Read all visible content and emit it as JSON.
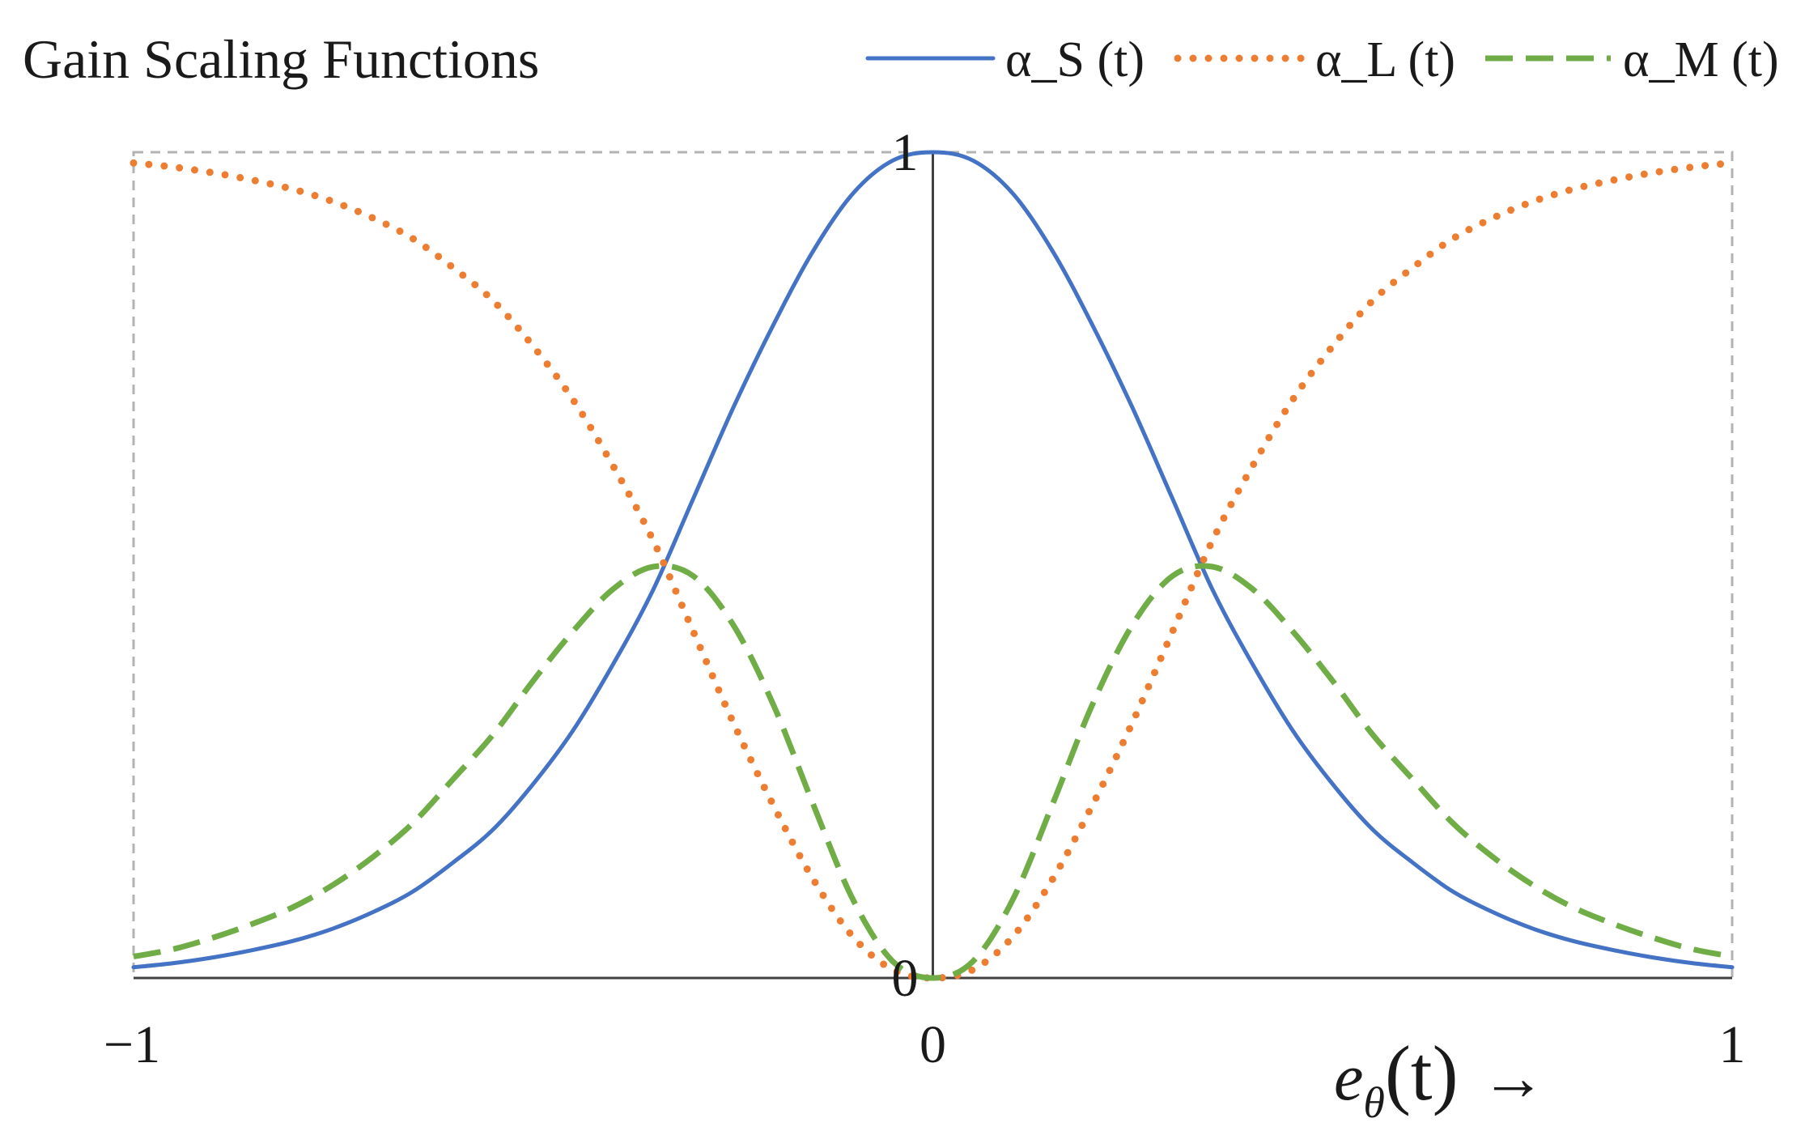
{
  "chart_data": {
    "type": "line",
    "title": "Gain Scaling Functions",
    "xlabel": {
      "symbol": "e",
      "subscript": "θ",
      "argument": "(t)",
      "arrow": "→"
    },
    "ylabel": "",
    "xlim": [
      -1,
      1
    ],
    "ylim": [
      0,
      1
    ],
    "x_tick_labels": [
      "−1",
      "0",
      "1"
    ],
    "y_tick_labels": [
      "0",
      "1"
    ],
    "grid": false,
    "frame": "dashed",
    "legend_position": "top-right",
    "x": [
      -1.0,
      -0.95,
      -0.9,
      -0.85,
      -0.8,
      -0.75,
      -0.7,
      -0.65,
      -0.6,
      -0.55,
      -0.5,
      -0.45,
      -0.4,
      -0.35,
      -0.3,
      -0.25,
      -0.2,
      -0.15,
      -0.1,
      -0.05,
      0.0,
      0.05,
      0.1,
      0.15,
      0.2,
      0.25,
      0.3,
      0.35,
      0.4,
      0.45,
      0.5,
      0.55,
      0.6,
      0.65,
      0.7,
      0.75,
      0.8,
      0.85,
      0.9,
      0.95,
      1.0
    ],
    "series": [
      {
        "name": "α_S (t)",
        "color": "#4472C4",
        "style": "solid",
        "values": [
          0.013,
          0.018,
          0.025,
          0.034,
          0.045,
          0.06,
          0.08,
          0.105,
          0.14,
          0.18,
          0.235,
          0.3,
          0.38,
          0.47,
          0.58,
          0.69,
          0.79,
          0.88,
          0.95,
          0.99,
          1.0,
          0.99,
          0.95,
          0.88,
          0.79,
          0.69,
          0.58,
          0.47,
          0.38,
          0.3,
          0.235,
          0.18,
          0.14,
          0.105,
          0.08,
          0.06,
          0.045,
          0.034,
          0.025,
          0.018,
          0.013
        ]
      },
      {
        "name": "α_L (t)",
        "color": "#ED7D31",
        "style": "dotted",
        "values": [
          0.987,
          0.982,
          0.975,
          0.966,
          0.955,
          0.94,
          0.92,
          0.895,
          0.86,
          0.82,
          0.765,
          0.7,
          0.62,
          0.53,
          0.42,
          0.31,
          0.21,
          0.12,
          0.05,
          0.01,
          0.0,
          0.01,
          0.05,
          0.12,
          0.21,
          0.31,
          0.42,
          0.53,
          0.62,
          0.7,
          0.765,
          0.82,
          0.86,
          0.895,
          0.92,
          0.94,
          0.955,
          0.966,
          0.975,
          0.982,
          0.987
        ]
      },
      {
        "name": "α_M (t)",
        "color": "#70AD47",
        "style": "dashed",
        "values": [
          0.026,
          0.035,
          0.049,
          0.066,
          0.086,
          0.113,
          0.147,
          0.188,
          0.241,
          0.295,
          0.36,
          0.42,
          0.471,
          0.498,
          0.487,
          0.428,
          0.332,
          0.211,
          0.095,
          0.02,
          0.0,
          0.02,
          0.095,
          0.211,
          0.332,
          0.428,
          0.487,
          0.498,
          0.471,
          0.42,
          0.36,
          0.295,
          0.241,
          0.188,
          0.147,
          0.113,
          0.086,
          0.066,
          0.049,
          0.035,
          0.026
        ]
      }
    ]
  }
}
